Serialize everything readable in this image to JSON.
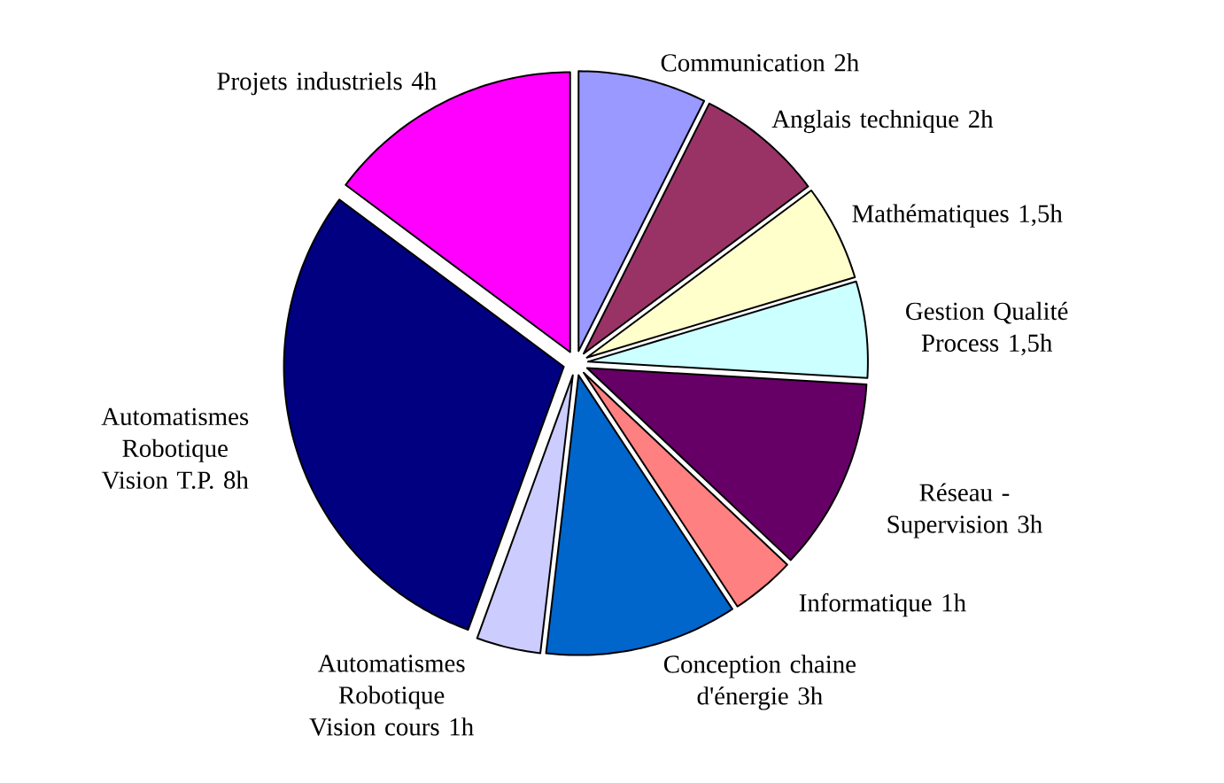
{
  "chart_data": {
    "type": "pie",
    "categories": [
      "Communication",
      "Anglais technique",
      "Mathématiques",
      "Gestion Qualité Process",
      "Réseau - Supervision",
      "Informatique",
      "Conception chaine d'énergie",
      "Automatismes Robotique Vision cours",
      "Automatismes Robotique Vision T.P.",
      "Projets industriels"
    ],
    "values": [
      2,
      2,
      1.5,
      1.5,
      3,
      1,
      3,
      1,
      8,
      4
    ],
    "value_labels": [
      "2h",
      "2h",
      "1,5h",
      "1,5h",
      "3h",
      "1h",
      "3h",
      "1h",
      "8h",
      "4h"
    ],
    "colors": [
      "#9999ff",
      "#993366",
      "#ffffcc",
      "#ccffff",
      "#660066",
      "#ff8080",
      "#0066cc",
      "#ccccff",
      "#000080",
      "#ff00ff"
    ]
  }
}
